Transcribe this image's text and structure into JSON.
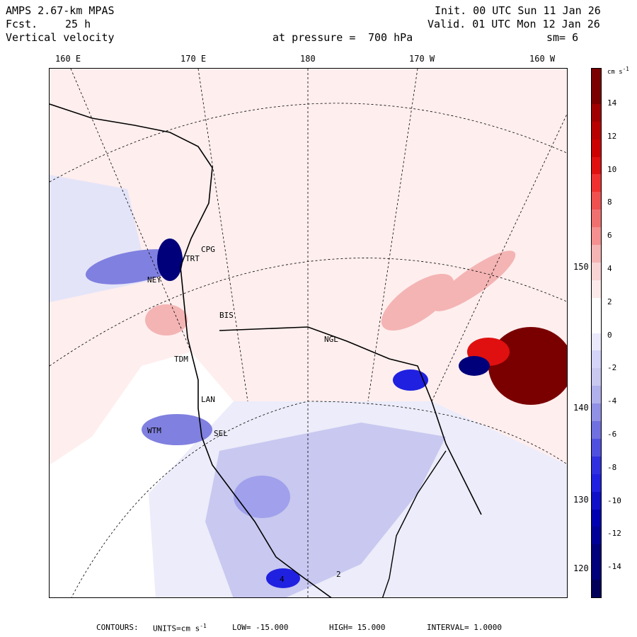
{
  "header": {
    "model": "AMPS 2.67-km MPAS",
    "forecast_label": "Fcst.",
    "forecast_hours": "25 h",
    "field": "Vertical velocity",
    "init": "Init. 00 UTC Sun 11 Jan 26",
    "valid": "Valid. 01 UTC Mon 12 Jan 26",
    "pressure_label": "at pressure =",
    "pressure_value": "700 hPa",
    "smoothing": "sm= 6"
  },
  "axes": {
    "top_longitudes": [
      "160 E",
      "170 E",
      "180",
      "170 W",
      "160 W"
    ],
    "right_longitudes": [
      "150 W",
      "140 W",
      "130 W",
      "120 W"
    ]
  },
  "stations": [
    {
      "id": "CPG",
      "label": "CPG"
    },
    {
      "id": "TRT",
      "label": "TRT"
    },
    {
      "id": "NEY",
      "label": "NEY"
    },
    {
      "id": "BIS",
      "label": "BIS"
    },
    {
      "id": "NGL",
      "label": "NGL"
    },
    {
      "id": "TDM",
      "label": "TDM"
    },
    {
      "id": "LAN",
      "label": "LAN"
    },
    {
      "id": "WTM",
      "label": "WTM"
    },
    {
      "id": "SEL",
      "label": "SEL"
    },
    {
      "id": "box4",
      "label": "4"
    },
    {
      "id": "box2",
      "label": "2"
    }
  ],
  "colorbar": {
    "unit": "cm s",
    "unit_exp": "-1",
    "tick_labels": [
      "14",
      "12",
      "10",
      "8",
      "6",
      "4",
      "2",
      "0",
      "-2",
      "-4",
      "-6",
      "-8",
      "-10",
      "-12",
      "-14"
    ],
    "colors": {
      "strong_up": "#7a0000",
      "up": "#e01010",
      "weak_up": "#f4b4b4",
      "neutral": "#ffffff",
      "weak_down": "#c8c8f0",
      "down": "#2020e0",
      "strong_down": "#00007a"
    }
  },
  "footer": {
    "contours": "CONTOURS:",
    "units_label": "UNITS=cm s",
    "units_exp": "-1",
    "low": "LOW= -15.000",
    "high": "HIGH= 15.000",
    "interval": "INTERVAL= 1.0000"
  }
}
